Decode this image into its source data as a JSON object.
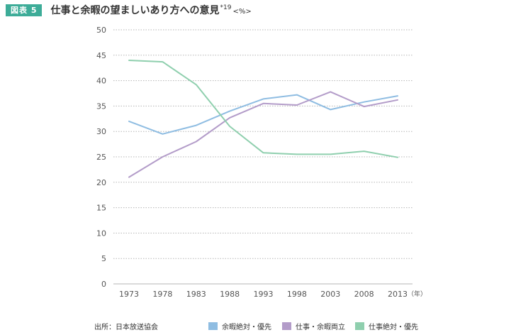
{
  "figure_label": "図表 5",
  "title": "仕事と余暇の望ましいあり方への意見",
  "title_note": "*19",
  "title_unit": "<%>",
  "source": "出所：日本放送協会",
  "colors": {
    "badge": "#3dac98",
    "grid": "#b5b5b5",
    "axis_text": "#555555"
  },
  "chart_data": {
    "type": "line",
    "title": "仕事と余暇の望ましいあり方への意見",
    "xlabel": "",
    "ylabel": "",
    "x_unit_label": "（年）",
    "categories": [
      "1973",
      "1978",
      "1983",
      "1988",
      "1993",
      "1998",
      "2003",
      "2008",
      "2013"
    ],
    "ylim": [
      0,
      50
    ],
    "yticks": [
      0,
      5,
      10,
      15,
      20,
      25,
      30,
      35,
      40,
      45,
      50
    ],
    "grid": true,
    "legend_position": "bottom",
    "series": [
      {
        "name": "余暇絶対・優先",
        "color": "#8fbde2",
        "values": [
          32,
          29.5,
          31.2,
          34,
          36.4,
          37.2,
          34.3,
          35.8,
          37
        ]
      },
      {
        "name": "仕事・余暇両立",
        "color": "#b39cc9",
        "values": [
          21,
          25,
          28,
          32.7,
          35.5,
          35.2,
          37.8,
          34.9,
          36.2
        ]
      },
      {
        "name": "仕事絶対・優先",
        "color": "#8fcfae",
        "values": [
          44,
          43.7,
          39.2,
          31,
          25.8,
          25.5,
          25.5,
          26.1,
          24.9
        ]
      }
    ]
  }
}
